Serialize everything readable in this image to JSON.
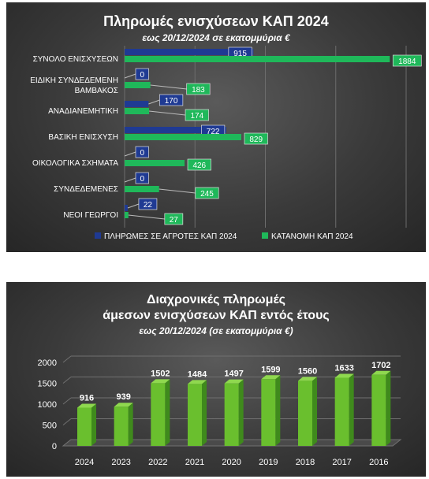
{
  "chart_data": [
    {
      "type": "bar",
      "orientation": "horizontal",
      "title": "Πληρωμές ενισχύσεων ΚΑΠ 2024",
      "subtitle": "εως 20/12/2024 σε εκατομμύρια €",
      "categories": [
        "ΣΥΝΟΛΟ ΕΝΙΣΧΥΣΕΩΝ",
        "ΕΙΔΙΚΗ ΣΥΝΔΕΔΕΜΕΝΗ ΒΑΜΒΑΚΟΣ",
        "ΑΝΑΔΙΑΝΕΜΗΤΙΚΗ",
        "ΒΑΣΙΚΗ ΕΝΙΣΧΥΣΗ",
        "ΟΙΚΟΛΟΓΙΚΑ ΣΧΗΜΑΤΑ",
        "ΣΥΝΔΕΔΕΜΕΝΕΣ",
        "ΝΕΟΙ ΓΕΩΡΓΟΙ"
      ],
      "category_lines": [
        [
          "ΣΥΝΟΛΟ ΕΝΙΣΧΥΣΕΩΝ"
        ],
        [
          "ΕΙΔΙΚΗ ΣΥΝΔΕΔΕΜΕΝΗ",
          "ΒΑΜΒΑΚΟΣ"
        ],
        [
          "ΑΝΑΔΙΑΝΕΜΗΤΙΚΗ"
        ],
        [
          "ΒΑΣΙΚΗ ΕΝΙΣΧΥΣΗ"
        ],
        [
          "ΟΙΚΟΛΟΓΙΚΑ ΣΧΗΜΑΤΑ"
        ],
        [
          "ΣΥΝΔΕΔΕΜΕΝΕΣ"
        ],
        [
          "ΝΕΟΙ ΓΕΩΡΓΟΙ"
        ]
      ],
      "series": [
        {
          "name": "ΠΛΗΡΩΜΕΣ ΣΕ ΑΓΡΟΤΕΣ ΚΑΠ 2024",
          "color": "#1f3a93",
          "values": [
            915,
            0,
            170,
            722,
            0,
            0,
            22
          ]
        },
        {
          "name": "ΚΑΤΑΝΟΜΗ ΚΑΠ 2024",
          "color": "#1fb85a",
          "values": [
            1884,
            183,
            174,
            829,
            426,
            245,
            27
          ]
        }
      ],
      "xlim": [
        0,
        2000
      ],
      "grid": true,
      "legend_position": "bottom"
    },
    {
      "type": "bar",
      "style": "3d-columns",
      "title_lines": [
        "Διαχρονικές πληρωμές",
        "άμεσων ενισχύσεων ΚΑΠ εντός έτους"
      ],
      "subtitle": "εως 20/12/2024 (σε εκατομμύρια €)",
      "categories": [
        "2024",
        "2023",
        "2022",
        "2021",
        "2020",
        "2019",
        "2018",
        "2017",
        "2016"
      ],
      "values": [
        916,
        939,
        1502,
        1484,
        1497,
        1599,
        1560,
        1633,
        1702
      ],
      "yticks": [
        "0",
        "500",
        "1000",
        "1500",
        "2000"
      ],
      "ylim": [
        0,
        2000
      ],
      "color": "#6abf2e",
      "grid": true
    }
  ]
}
